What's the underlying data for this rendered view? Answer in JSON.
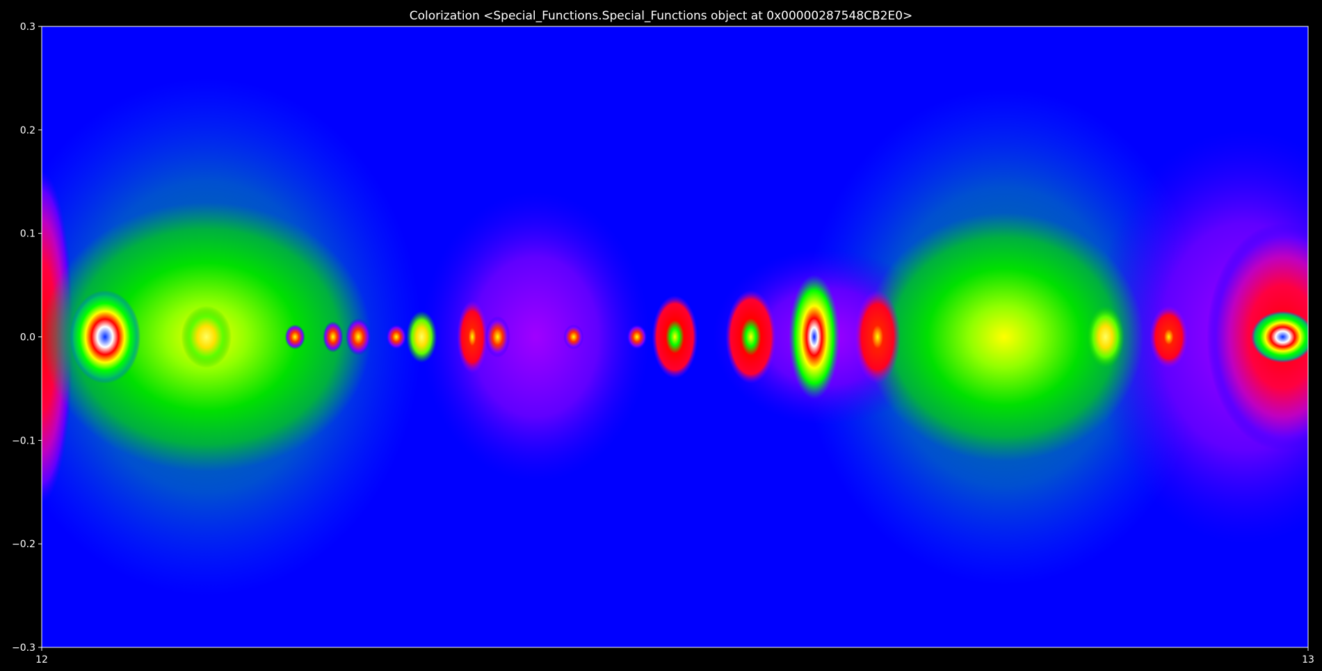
{
  "chart_data": {
    "type": "heatmap",
    "title": "Colorization <Special_Functions.Special_Functions object at 0x00000287548CB2E0>",
    "xlabel": "",
    "ylabel": "",
    "xlim": [
      12,
      13
    ],
    "ylim": [
      -0.3,
      0.3
    ],
    "x_ticks": [
      "12",
      "13"
    ],
    "y_ticks": [
      "0.3",
      "0.2",
      "0.1",
      "0.0",
      "−0.1",
      "−0.2",
      "−0.3"
    ],
    "y_tick_values": [
      0.3,
      0.2,
      0.1,
      0.0,
      -0.1,
      -0.2,
      -0.3
    ],
    "x_tick_values": [
      12,
      13
    ],
    "grid": false,
    "colormap": "domain-coloring (blue → violet → red → yellow → green → blue)",
    "background_color": "#0000ff",
    "figure_facecolor": "#000000",
    "text_color": "#ffffff",
    "features": [
      {
        "x": 12.0,
        "y": 0.0,
        "kind": "red-lobe",
        "rx": 0.025,
        "ry": 0.16
      },
      {
        "x": 12.05,
        "y": 0.0,
        "kind": "ring",
        "rx": 0.028,
        "ry": 0.045
      },
      {
        "x": 12.13,
        "y": 0.0,
        "kind": "green-cloud",
        "rx": 0.13,
        "ry": 0.13
      },
      {
        "x": 12.13,
        "y": 0.0,
        "kind": "teal-halo",
        "rx": 0.17,
        "ry": 0.25
      },
      {
        "x": 12.13,
        "y": 0.0,
        "kind": "yellow-blob",
        "rx": 0.02,
        "ry": 0.03
      },
      {
        "x": 12.2,
        "y": 0.0,
        "kind": "small-spot",
        "rx": 0.008,
        "ry": 0.012
      },
      {
        "x": 12.23,
        "y": 0.0,
        "kind": "small-spot",
        "rx": 0.008,
        "ry": 0.015
      },
      {
        "x": 12.25,
        "y": 0.0,
        "kind": "small-spot",
        "rx": 0.01,
        "ry": 0.018
      },
      {
        "x": 12.28,
        "y": 0.0,
        "kind": "small-spot",
        "rx": 0.008,
        "ry": 0.012
      },
      {
        "x": 12.3,
        "y": 0.0,
        "kind": "yellow-blob",
        "rx": 0.012,
        "ry": 0.025
      },
      {
        "x": 12.36,
        "y": 0.0,
        "kind": "small-spot",
        "rx": 0.01,
        "ry": 0.02
      },
      {
        "x": 12.42,
        "y": 0.0,
        "kind": "small-spot",
        "rx": 0.008,
        "ry": 0.012
      },
      {
        "x": 12.47,
        "y": 0.0,
        "kind": "small-spot",
        "rx": 0.008,
        "ry": 0.012
      },
      {
        "x": 12.34,
        "y": 0.0,
        "kind": "red-dot",
        "rx": 0.012,
        "ry": 0.035
      },
      {
        "x": 12.39,
        "y": 0.0,
        "kind": "violet-lobe",
        "rx": 0.09,
        "ry": 0.14
      },
      {
        "x": 12.5,
        "y": 0.0,
        "kind": "red-ring",
        "rx": 0.018,
        "ry": 0.04
      },
      {
        "x": 12.56,
        "y": 0.0,
        "kind": "red-ring",
        "rx": 0.02,
        "ry": 0.045
      },
      {
        "x": 12.61,
        "y": 0.0,
        "kind": "yellow-ring",
        "rx": 0.02,
        "ry": 0.06
      },
      {
        "x": 12.66,
        "y": 0.0,
        "kind": "red-dot",
        "rx": 0.018,
        "ry": 0.045
      },
      {
        "x": 12.62,
        "y": 0.0,
        "kind": "violet-lobe",
        "rx": 0.09,
        "ry": 0.085
      },
      {
        "x": 12.76,
        "y": 0.0,
        "kind": "green-cloud",
        "rx": 0.11,
        "ry": 0.12
      },
      {
        "x": 12.76,
        "y": 0.0,
        "kind": "teal-halo",
        "rx": 0.16,
        "ry": 0.24
      },
      {
        "x": 12.84,
        "y": 0.0,
        "kind": "yellow-blob",
        "rx": 0.015,
        "ry": 0.03
      },
      {
        "x": 12.89,
        "y": 0.0,
        "kind": "red-dot",
        "rx": 0.015,
        "ry": 0.03
      },
      {
        "x": 12.95,
        "y": 0.0,
        "kind": "violet-lobe",
        "rx": 0.12,
        "ry": 0.2
      },
      {
        "x": 12.98,
        "y": 0.0,
        "kind": "red-lobe",
        "rx": 0.06,
        "ry": 0.11
      },
      {
        "x": 12.98,
        "y": 0.0,
        "kind": "ring",
        "rx": 0.025,
        "ry": 0.025
      }
    ]
  }
}
